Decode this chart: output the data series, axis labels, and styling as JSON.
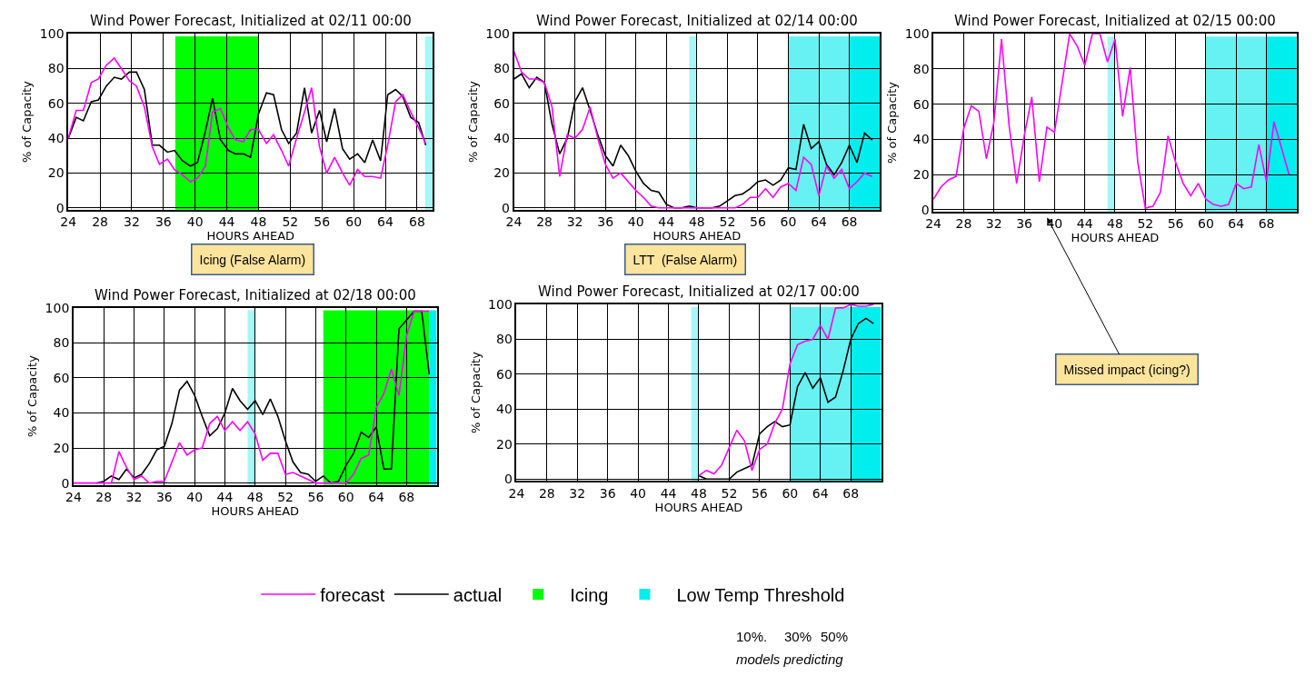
{
  "chart_data": [
    {
      "type": "line",
      "title": "Wind Power Forecast, Initialized at 02/11 00:00",
      "xlabel": "HOURS AHEAD",
      "ylabel": "% of Capacity",
      "x": [
        24.0,
        25.0,
        25.9,
        26.9,
        27.8,
        28.8,
        29.8,
        30.7,
        31.7,
        32.6,
        33.6,
        34.6,
        35.5,
        36.5,
        37.4,
        38.4,
        39.4,
        40.3,
        41.3,
        42.2,
        43.2,
        44.2,
        45.1,
        46.1,
        47.0,
        48.0,
        49.0,
        49.9,
        50.9,
        51.8,
        52.8,
        53.8,
        54.7,
        55.7,
        56.6,
        57.6,
        58.6,
        59.5,
        60.5,
        61.4,
        62.4,
        63.4,
        64.3,
        65.3,
        66.2,
        67.2,
        68.2,
        69.1
      ],
      "xlim": [
        24,
        70
      ],
      "xticks": [
        24,
        28,
        32,
        36,
        40,
        44,
        48,
        52,
        56,
        60,
        64,
        68
      ],
      "ylim": [
        -1,
        100
      ],
      "yticks": [
        0,
        20,
        40,
        60,
        80,
        100
      ],
      "grid": true,
      "series": [
        {
          "color": "#ff00ff",
          "values": [
            40,
            56,
            56,
            72,
            74,
            82,
            86,
            80,
            73,
            70,
            58,
            35,
            25,
            28,
            22,
            19,
            15,
            17,
            24,
            55,
            57,
            46,
            39,
            38,
            45,
            45,
            37,
            42,
            33,
            24,
            40,
            55,
            69,
            35,
            20,
            29,
            20,
            13,
            22,
            18,
            18,
            17,
            36,
            61,
            65,
            55,
            46,
            37
          ]
        },
        {
          "color": "#000000",
          "values": [
            40,
            52,
            50,
            61,
            62,
            70,
            75,
            74,
            78,
            78,
            68,
            36,
            36,
            32,
            33,
            27,
            24,
            26,
            44,
            63,
            39,
            33,
            31,
            31,
            29,
            54,
            66,
            65,
            45,
            37,
            43,
            69,
            43,
            56,
            38,
            57,
            34,
            28,
            31,
            26,
            39,
            27,
            65,
            68,
            64,
            52,
            49,
            36
          ]
        }
      ],
      "bands": [
        {
          "axis": "x",
          "from": 37.5,
          "to": 48,
          "color": "#00ff00"
        },
        {
          "axis": "x",
          "from": 69,
          "to": 70,
          "color": "#a6f7f7"
        }
      ],
      "annotations": [
        "Icing (False Alarm)"
      ]
    },
    {
      "type": "line",
      "title": "Wind Power Forecast, Initialized at 02/14 00:00",
      "xlabel": "HOURS AHEAD",
      "ylabel": "% of Capacity",
      "x": [
        24,
        25,
        26,
        27,
        28,
        29,
        30,
        31,
        32,
        33,
        34,
        35,
        36,
        37,
        38,
        39,
        40,
        41,
        42,
        43,
        44,
        45,
        46,
        47,
        48,
        49,
        50,
        51,
        52,
        53,
        54,
        55,
        56,
        57,
        58,
        59,
        60,
        61,
        62,
        63,
        64,
        65,
        66,
        67,
        68,
        69,
        70,
        71
      ],
      "xlim": [
        24,
        72
      ],
      "xticks": [
        24,
        28,
        32,
        36,
        40,
        44,
        48,
        52,
        56,
        60,
        64,
        68
      ],
      "ylim": [
        -1,
        100
      ],
      "yticks": [
        0,
        20,
        40,
        60,
        80,
        100
      ],
      "grid": true,
      "series": [
        {
          "color": "#ff00ff",
          "values": [
            90,
            78,
            74,
            74,
            72,
            58,
            18,
            42,
            40,
            45,
            58,
            40,
            25,
            17,
            20,
            15,
            10,
            6,
            1,
            0,
            0,
            0,
            0,
            0,
            0,
            0,
            0,
            0,
            0,
            0,
            2,
            6,
            6,
            11,
            6,
            12,
            14,
            10,
            29,
            25,
            7,
            24,
            17,
            22,
            11,
            15,
            20,
            18
          ]
        },
        {
          "color": "#000000",
          "values": [
            74,
            77,
            69,
            75,
            72,
            48,
            31,
            40,
            61,
            69,
            56,
            42,
            30,
            24,
            36,
            30,
            21,
            14,
            10,
            9,
            2,
            0,
            0,
            1,
            0,
            0,
            0,
            1,
            4,
            7,
            8,
            11,
            15,
            16,
            13,
            16,
            23,
            22,
            48,
            34,
            38,
            25,
            19,
            26,
            36,
            26,
            43,
            39
          ]
        }
      ],
      "bands": [
        {
          "axis": "x",
          "from": 47,
          "to": 48,
          "color": "#a6f7f7"
        },
        {
          "axis": "x",
          "from": 60,
          "to": 68,
          "color": "#66f2f2"
        },
        {
          "axis": "x",
          "from": 68,
          "to": 72,
          "color": "#00eeee"
        }
      ],
      "annotations": [
        "LTT  (False Alarm)"
      ]
    },
    {
      "type": "line",
      "title": "Wind Power Forecast, Initialized at 02/15 00:00",
      "xlabel": "HOURS AHEAD",
      "ylabel": "% of Capacity",
      "x": [
        24,
        25,
        26,
        27,
        28,
        29,
        30,
        31,
        32,
        33,
        34,
        35,
        36,
        37,
        38,
        39,
        40,
        41,
        42,
        43,
        44,
        45,
        46,
        47,
        48,
        49,
        50,
        51,
        52,
        53,
        54,
        55,
        56,
        57,
        58,
        59,
        60,
        61,
        62,
        63,
        64,
        65,
        66,
        67,
        68,
        69,
        70,
        71
      ],
      "xlim": [
        24,
        72
      ],
      "xticks": [
        24,
        28,
        32,
        36,
        40,
        44,
        48,
        52,
        56,
        60,
        64,
        68
      ],
      "ylim": [
        -1,
        100
      ],
      "yticks": [
        0,
        20,
        40,
        60,
        80,
        100
      ],
      "grid": true,
      "series": [
        {
          "color": "#ff00ff",
          "values": [
            6,
            13,
            17,
            19,
            46,
            59,
            56,
            29,
            50,
            97,
            48,
            15,
            42,
            64,
            16,
            47,
            44,
            72,
            100,
            93,
            82,
            100,
            100,
            84,
            97,
            53,
            81,
            27,
            1,
            2,
            10,
            42,
            27,
            15,
            8,
            15,
            6,
            3,
            2,
            3,
            15,
            12,
            13,
            37,
            16,
            50,
            35,
            20
          ]
        }
      ],
      "bands": [
        {
          "axis": "x",
          "from": 47,
          "to": 48,
          "color": "#a6f7f7"
        },
        {
          "axis": "x",
          "from": 60,
          "to": 68,
          "color": "#66f2f2"
        },
        {
          "axis": "x",
          "from": 68,
          "to": 72,
          "color": "#00eeee"
        }
      ],
      "annotations": [
        "Missed impact (icing?)"
      ]
    },
    {
      "type": "line",
      "title": "Wind Power Forecast, Initialized at 02/18 00:00",
      "xlabel": "HOURS AHEAD",
      "ylabel": "% of Capacity",
      "x": [
        24,
        25,
        26,
        27,
        28,
        29,
        30,
        31,
        32,
        33,
        34,
        35,
        36,
        37,
        38,
        39,
        40,
        41,
        42,
        43,
        44,
        45,
        46,
        47,
        48,
        49,
        50,
        51,
        52,
        53,
        54,
        55,
        56,
        57,
        58,
        59,
        60,
        61,
        62,
        63,
        64,
        65,
        66,
        67,
        68,
        69,
        70,
        71
      ],
      "xlim": [
        24,
        72
      ],
      "xticks": [
        24,
        28,
        32,
        36,
        40,
        44,
        48,
        52,
        56,
        60,
        64,
        68
      ],
      "ylim": [
        -1,
        100
      ],
      "yticks": [
        0,
        20,
        40,
        60,
        80,
        100
      ],
      "grid": true,
      "legend": "bottom",
      "series": [
        {
          "name": "forecast",
          "color": "#ff00ff",
          "values": [
            0,
            0,
            0,
            0,
            0,
            0,
            18,
            9,
            2,
            4,
            0,
            1,
            1,
            12,
            23,
            16,
            19,
            20,
            34,
            38,
            30,
            35,
            30,
            35,
            28,
            13,
            17,
            17,
            5,
            6,
            4,
            2,
            0,
            0,
            0,
            0,
            0,
            5,
            14,
            16,
            43,
            51,
            65,
            50,
            84,
            98,
            98,
            98
          ]
        },
        {
          "name": "actual",
          "color": "#000000",
          "values": [
            null,
            null,
            null,
            0,
            1,
            4,
            2,
            8,
            3,
            5,
            11,
            19,
            21,
            34,
            53,
            58,
            50,
            38,
            27,
            31,
            40,
            54,
            47,
            42,
            47,
            39,
            48,
            38,
            24,
            12,
            6,
            5,
            1,
            4,
            0,
            1,
            10,
            17,
            29,
            26,
            32,
            8,
            8,
            88,
            93,
            98,
            98,
            62
          ]
        }
      ],
      "bands": [
        {
          "axis": "x",
          "from": 47,
          "to": 48,
          "color": "#a6f7f7"
        },
        {
          "axis": "x",
          "from": 57,
          "to": 71,
          "color": "#00ff00",
          "label": "Icing"
        },
        {
          "axis": "x",
          "from": 71,
          "to": 72,
          "color": "#00eeee",
          "label": "Low Temp Threshold"
        }
      ]
    },
    {
      "type": "line",
      "title": "Wind Power Forecast, Initialized at 02/17 00:00",
      "xlabel": "HOURS AHEAD",
      "ylabel": "% of Capacity",
      "xlim": [
        24,
        72
      ],
      "xticks": [
        24,
        28,
        32,
        36,
        40,
        44,
        48,
        52,
        56,
        60,
        64,
        68
      ],
      "ylim": [
        -1,
        100
      ],
      "yticks": [
        0,
        20,
        40,
        60,
        80,
        100
      ],
      "grid": true,
      "series": [
        {
          "color": "#ff00ff",
          "x": [
            48,
            49,
            50,
            51,
            52,
            53,
            54,
            55,
            56,
            57,
            58,
            59,
            60,
            61,
            62,
            63,
            64,
            65,
            66,
            67,
            68,
            69,
            70,
            71
          ],
          "values": [
            2,
            5,
            3,
            8,
            18,
            28,
            22,
            5,
            17,
            20,
            32,
            40,
            66,
            77,
            79,
            80,
            88,
            80,
            98,
            98,
            100,
            99,
            99,
            100
          ]
        },
        {
          "color": "#000000",
          "x": [
            48,
            49,
            50,
            51,
            52,
            53,
            54,
            55,
            56,
            57,
            58,
            59,
            60,
            61,
            62,
            63,
            64,
            65,
            66,
            67,
            68,
            69,
            70,
            71
          ],
          "values": [
            2,
            0,
            0,
            0,
            0,
            4,
            6,
            8,
            26,
            30,
            33,
            30,
            31,
            53,
            61,
            52,
            58,
            44,
            47,
            62,
            80,
            89,
            92,
            89
          ]
        }
      ],
      "bands": [
        {
          "axis": "x",
          "from": 47,
          "to": 48,
          "color": "#a6f7f7"
        },
        {
          "axis": "x",
          "from": 60,
          "to": 68,
          "color": "#66f2f2"
        },
        {
          "axis": "x",
          "from": 68,
          "to": 72,
          "color": "#00eeee"
        }
      ],
      "annotations": [
        "10%.",
        "30%",
        "50%",
        "models predicting"
      ]
    }
  ]
}
